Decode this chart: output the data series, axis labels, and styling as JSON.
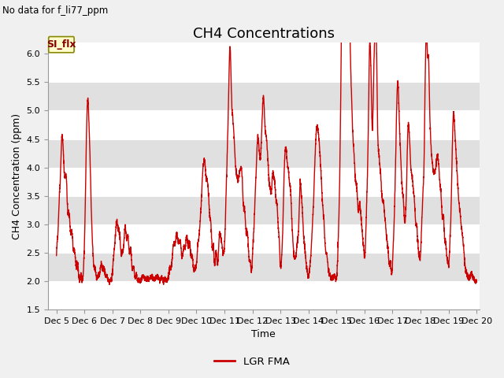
{
  "title": "CH4 Concentrations",
  "top_left_text": "No data for f_li77_ppm",
  "ylabel": "CH4 Concentration (ppm)",
  "xlabel": "Time",
  "ylim": [
    1.5,
    6.2
  ],
  "yticks": [
    1.5,
    2.0,
    2.5,
    3.0,
    3.5,
    4.0,
    4.5,
    5.0,
    5.5,
    6.0
  ],
  "xlim_days": [
    4.7,
    20.1
  ],
  "x_tick_days": [
    5,
    6,
    7,
    8,
    9,
    10,
    11,
    12,
    13,
    14,
    15,
    16,
    17,
    18,
    19,
    20
  ],
  "x_tick_labels": [
    "Dec 5",
    "Dec 6",
    "Dec 7",
    "Dec 8",
    "Dec 9",
    "Dec 10",
    "Dec 11",
    "Dec 12",
    "Dec 13",
    "Dec 14",
    "Dec 15",
    "Dec 16",
    "Dec 17",
    "Dec 18",
    "Dec 19",
    "Dec 20"
  ],
  "line_color": "#cc0000",
  "line_width": 1.0,
  "legend_label": "LGR FMA",
  "legend_line_color": "#cc0000",
  "si_flx_label": "SI_flx",
  "si_flx_bg": "#ffffcc",
  "si_flx_border": "#888800",
  "si_flx_text_color": "#880000",
  "background_color": "#f0f0f0",
  "plot_bg_white": "#ffffff",
  "band_color_dark": "#e0e0e0",
  "band_color_light": "#f0f0f0",
  "title_fontsize": 13,
  "axis_label_fontsize": 9,
  "tick_fontsize": 8
}
